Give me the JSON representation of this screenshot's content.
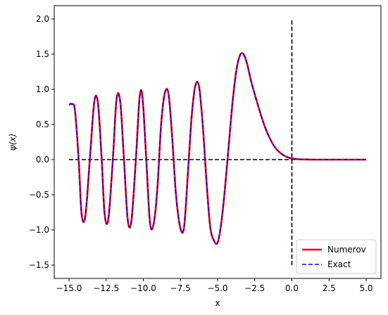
{
  "chart_data": {
    "type": "line",
    "xlabel": "x",
    "ylabel": "ψ(x)",
    "xlim": [
      -15.0,
      5.0
    ],
    "ylim": [
      -1.5,
      2.0
    ],
    "xticks": [
      -15.0,
      -12.5,
      -10.0,
      -7.5,
      -5.0,
      -2.5,
      0.0,
      2.5,
      5.0
    ],
    "yticks": [
      -1.5,
      -1.0,
      -0.5,
      0.0,
      0.5,
      1.0,
      1.5,
      2.0
    ],
    "xtick_labels": [
      "−15.0",
      "−12.5",
      "−10.0",
      "−7.5",
      "−5.0",
      "−2.5",
      "0.0",
      "2.5",
      "5.0"
    ],
    "ytick_labels": [
      "−1.5",
      "−1.0",
      "−0.5",
      "0.0",
      "0.5",
      "1.0",
      "1.5",
      "2.0"
    ],
    "legend_placement": "lower-right",
    "grid": false,
    "series": [
      {
        "name": "Numerov",
        "color": "#ff0000",
        "style": "solid",
        "x": [
          -15.0,
          -14.8,
          -14.6,
          -14.35,
          -14.15,
          -13.9,
          -13.6,
          -13.3,
          -13.05,
          -12.8,
          -12.6,
          -12.35,
          -12.05,
          -11.8,
          -11.55,
          -11.3,
          -11.05,
          -10.8,
          -10.5,
          -10.25,
          -10.05,
          -9.8,
          -9.55,
          -9.3,
          -9.05,
          -8.8,
          -8.55,
          -8.3,
          -8.05,
          -7.8,
          -7.5,
          -7.25,
          -7.0,
          -6.75,
          -6.5,
          -6.25,
          -6.0,
          -5.75,
          -5.5,
          -5.25,
          -5.0,
          -4.75,
          -4.5,
          -4.25,
          -4.0,
          -3.75,
          -3.5,
          -3.25,
          -3.0,
          -2.75,
          -2.5,
          -2.25,
          -2.0,
          -1.75,
          -1.5,
          -1.25,
          -1.0,
          -0.75,
          -0.5,
          -0.25,
          0.0,
          0.25,
          0.5,
          0.75,
          1.0,
          1.25,
          1.5,
          1.75,
          2.0,
          2.25,
          2.5,
          2.75,
          3.0,
          3.5,
          4.0,
          4.5,
          5.0
        ],
        "y": [
          0.78,
          0.79,
          0.7,
          0.0,
          -0.78,
          -0.8,
          0.0,
          0.82,
          0.8,
          0.0,
          -0.78,
          -0.84,
          0.0,
          0.86,
          0.82,
          0.0,
          -0.85,
          -0.87,
          0.0,
          0.88,
          0.88,
          0.0,
          -0.9,
          -0.91,
          -0.4,
          0.5,
          0.95,
          0.93,
          0.3,
          -0.5,
          -0.98,
          -0.95,
          -0.2,
          0.6,
          1.05,
          1.04,
          0.5,
          -0.3,
          -0.95,
          -1.15,
          -1.18,
          -0.9,
          -0.4,
          0.2,
          0.8,
          1.25,
          1.48,
          1.5,
          1.35,
          1.12,
          0.93,
          0.75,
          0.58,
          0.43,
          0.31,
          0.21,
          0.14,
          0.09,
          0.055,
          0.03,
          0.017,
          0.009,
          0.005,
          0.003,
          0.002,
          0.001,
          0.0,
          0.0,
          0.0,
          0.0,
          0.0,
          0.0,
          0.0,
          0.0,
          0.0,
          0.0,
          0.0
        ]
      },
      {
        "name": "Exact",
        "color": "#0000ff",
        "style": "dashed"
      }
    ],
    "reference_lines": [
      {
        "orientation": "horizontal",
        "value": 0.0,
        "from": -15.0,
        "to": 5.0,
        "color": "#000000",
        "style": "dashed"
      },
      {
        "orientation": "vertical",
        "value": 0.0,
        "from": -1.5,
        "to": 2.0,
        "color": "#000000",
        "style": "dashed"
      }
    ]
  }
}
